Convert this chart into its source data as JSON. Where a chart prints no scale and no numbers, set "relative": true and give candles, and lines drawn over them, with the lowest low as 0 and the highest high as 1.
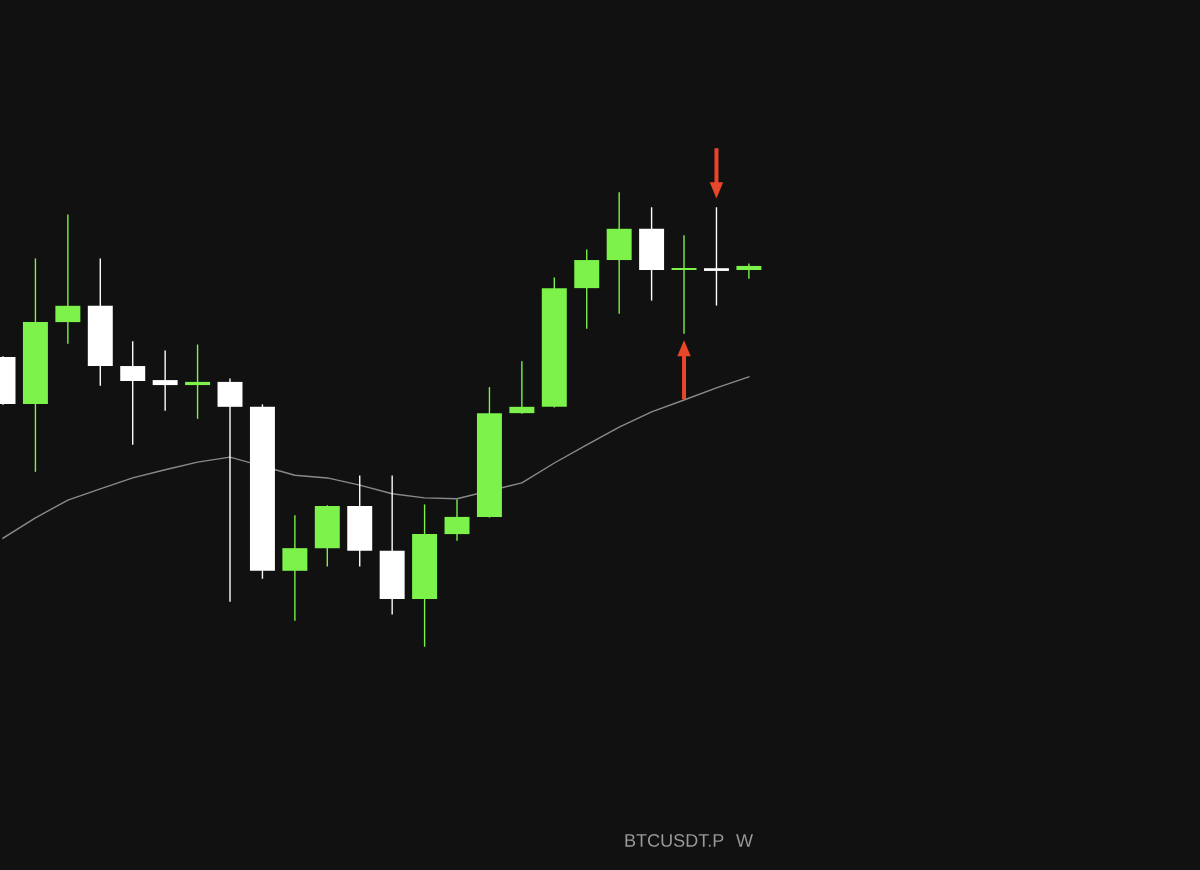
{
  "chart_data": {
    "type": "candlestick",
    "relative": true,
    "categories": [
      null,
      null,
      null,
      null,
      null,
      null,
      null,
      null,
      null,
      null,
      null,
      null,
      null,
      null,
      null,
      null,
      null,
      null,
      null,
      null,
      null,
      null,
      null,
      null
    ],
    "series": [
      {
        "type": "candlestick",
        "ohlc": [
          [
            0.638,
            0.638,
            0.534,
            0.534
          ],
          [
            0.534,
            0.854,
            0.386,
            0.715
          ],
          [
            0.715,
            0.951,
            0.669,
            0.751
          ],
          [
            0.751,
            0.854,
            0.576,
            0.618
          ],
          [
            0.618,
            0.671,
            0.446,
            0.585
          ],
          [
            0.587,
            0.651,
            0.521,
            0.576
          ],
          [
            0.576,
            0.664,
            0.503,
            0.583
          ],
          [
            0.583,
            0.589,
            0.099,
            0.528
          ],
          [
            0.528,
            0.532,
            0.15,
            0.166
          ],
          [
            0.166,
            0.287,
            0.057,
            0.216
          ],
          [
            0.216,
            0.309,
            0.177,
            0.309
          ],
          [
            0.309,
            0.375,
            0.177,
            0.21
          ],
          [
            0.21,
            0.375,
            0.071,
            0.104
          ],
          [
            0.104,
            0.311,
            0,
            0.247
          ],
          [
            0.247,
            0.322,
            0.234,
            0.285
          ],
          [
            0.285,
            0.57,
            0.285,
            0.514
          ],
          [
            0.514,
            0.627,
            0.514,
            0.528
          ],
          [
            0.528,
            0.812,
            0.528,
            0.79
          ],
          [
            0.79,
            0.874,
            0.702,
            0.852
          ],
          [
            0.852,
            1,
            0.735,
            0.921
          ],
          [
            0.921,
            0.967,
            0.764,
            0.83
          ],
          [
            0.83,
            0.905,
            0.691,
            0.834
          ],
          [
            0.834,
            0.967,
            0.753,
            0.828
          ],
          [
            0.83,
            0.843,
            0.812,
            0.839
          ]
        ],
        "colors": [
          "#ffffff",
          "#7cf24a",
          "#7cf24a",
          "#ffffff",
          "#ffffff",
          "#ffffff",
          "#7cf24a",
          "#ffffff",
          "#ffffff",
          "#7cf24a",
          "#7cf24a",
          "#ffffff",
          "#ffffff",
          "#7cf24a",
          "#7cf24a",
          "#7cf24a",
          "#7cf24a",
          "#7cf24a",
          "#7cf24a",
          "#7cf24a",
          "#ffffff",
          "#7cf24a",
          "#ffffff",
          "#7cf24a"
        ]
      },
      {
        "type": "line",
        "color": "#8a8a8a",
        "values": [
          0.238,
          0.283,
          0.322,
          0.347,
          0.371,
          0.389,
          0.406,
          0.417,
          null,
          0.377,
          0.371,
          0.355,
          0.336,
          0.327,
          0.325,
          null,
          0.36,
          0.404,
          0.444,
          0.483,
          0.517,
          0.543,
          0.57,
          0.594
        ]
      }
    ],
    "annotations": [
      "BTCUSDT.P",
      "W"
    ],
    "grid": false
  }
}
